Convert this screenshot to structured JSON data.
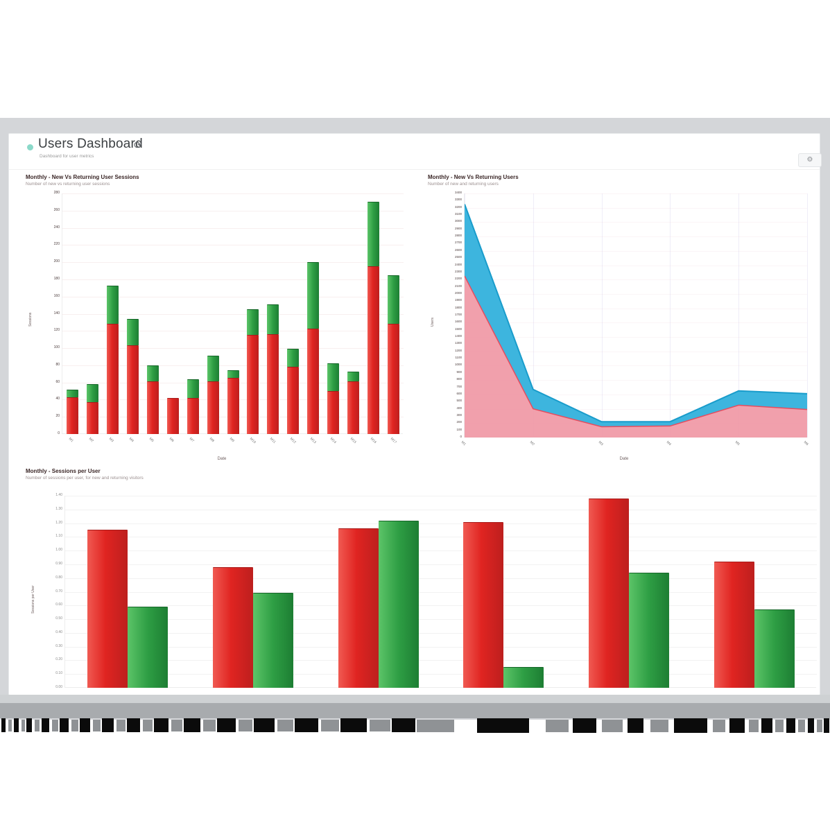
{
  "page": {
    "title": "Users Dashboard",
    "subtitle": "Dashboard for user metrics",
    "refresh_icon": "⟳",
    "settings_icon": "⚙",
    "accent_dot_color": "#8bd9c9"
  },
  "colors": {
    "red_bar": "#e02421",
    "green_bar": "#2e9e44",
    "blue_area_fill": "#33b1dc",
    "blue_area_stroke": "#199ccb",
    "pink_area_fill": "#ef96a3",
    "pink_area_stroke": "#e64c5e",
    "backdrop": "#d4d6d9"
  },
  "chart_data": [
    {
      "id": "sessions",
      "type": "bar",
      "stacked": true,
      "title": "Monthly - New Vs Returning User Sessions",
      "subtitle": "Number of new vs returning user sessions",
      "xlabel": "Date",
      "ylabel": "Sessions",
      "ylim": [
        0,
        280
      ],
      "ytick_step": 20,
      "grid": "horizontal",
      "legend": "none",
      "categories": [
        "M1",
        "M2",
        "M3",
        "M4",
        "M5",
        "M6",
        "M7",
        "M8",
        "M9",
        "M10",
        "M11",
        "M12",
        "M13",
        "M14",
        "M15",
        "M16",
        "M17"
      ],
      "series": [
        {
          "name": "New",
          "color": "#e02421",
          "values": [
            43,
            37,
            128,
            103,
            61,
            42,
            42,
            61,
            65,
            115,
            116,
            78,
            123,
            50,
            61,
            195,
            128
          ]
        },
        {
          "name": "Returning",
          "color": "#2e9e44",
          "values": [
            9,
            21,
            45,
            31,
            19,
            0,
            22,
            30,
            9,
            30,
            35,
            21,
            77,
            32,
            12,
            75,
            57
          ]
        }
      ]
    },
    {
      "id": "users",
      "type": "area",
      "stacked": true,
      "title": "Monthly - New Vs Returning Users",
      "subtitle": "Number of new and returning users",
      "xlabel": "Date",
      "ylabel": "Users",
      "ylim": [
        0,
        3400
      ],
      "ytick_step": 100,
      "grid": "both",
      "legend": "none",
      "categories": [
        "M1",
        "M2",
        "M3",
        "M4",
        "M5",
        "M6"
      ],
      "series": [
        {
          "name": "New",
          "color": "#ef96a3",
          "values": [
            2250,
            400,
            150,
            160,
            450,
            390
          ]
        },
        {
          "name": "Returning",
          "color": "#33b1dc",
          "values": [
            1000,
            270,
            70,
            60,
            200,
            220
          ]
        }
      ]
    },
    {
      "id": "sessions_per_user",
      "type": "bar",
      "grouped": true,
      "title": "Monthly - Sessions per User",
      "subtitle": "Number of sessions per user, for new and returning visitors",
      "xlabel": "",
      "ylabel": "Sessions per User",
      "ylim": [
        0,
        1.4
      ],
      "ytick_step": 0.1,
      "grid": "horizontal",
      "legend": "none",
      "categories": [
        "M1",
        "M2",
        "M3",
        "M4",
        "M5",
        "M6"
      ],
      "series": [
        {
          "name": "New",
          "color": "#e02421",
          "values": [
            1.15,
            0.88,
            1.16,
            1.21,
            1.38,
            0.92
          ]
        },
        {
          "name": "Returning",
          "color": "#2e9e44",
          "values": [
            0.59,
            0.69,
            1.22,
            0.15,
            0.84,
            0.57
          ]
        }
      ]
    }
  ]
}
